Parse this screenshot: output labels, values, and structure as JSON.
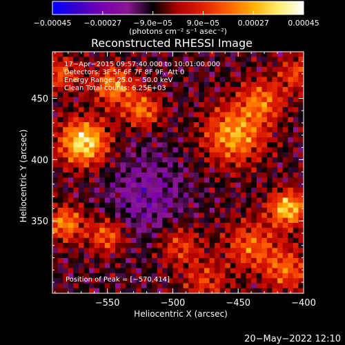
{
  "chart_data": {
    "type": "heatmap",
    "title": "Reconstructed RHESSI Image",
    "xlabel": "Heliocentric X (arcsec)",
    "ylabel": "Heliocentric Y (arcsec)",
    "xlim": [
      -592,
      -400
    ],
    "ylim": [
      291,
      488
    ],
    "x_ticks": [
      {
        "value": -550,
        "label": "−550"
      },
      {
        "value": -500,
        "label": "−500"
      },
      {
        "value": -450,
        "label": "−450"
      },
      {
        "value": -400,
        "label": "−400"
      }
    ],
    "y_ticks": [
      {
        "value": 450,
        "label": "450"
      },
      {
        "value": 400,
        "label": "400"
      },
      {
        "value": 350,
        "label": "350"
      }
    ],
    "colorbar": {
      "range": [
        -0.00045,
        0.00045
      ],
      "ticks": [
        {
          "value": -0.00045,
          "label": "−0.00045"
        },
        {
          "value": -0.00027,
          "label": "−0.00027"
        },
        {
          "value": -9e-05,
          "label": "−9.0e−05"
        },
        {
          "value": 9e-05,
          "label": "9.0e−05"
        },
        {
          "value": 0.00027,
          "label": "0.00027"
        },
        {
          "value": 0.00045,
          "label": "0.00045"
        }
      ],
      "unit_label": "(photons cm⁻² s⁻¹ asec⁻²)",
      "colormap": [
        "#0000ff",
        "#3a00c8",
        "#7a00b0",
        "#8a1890",
        "#000000",
        "#b00000",
        "#e02000",
        "#ff6000",
        "#ffb000",
        "#ffee70",
        "#ffffff"
      ]
    },
    "annotations": [
      "17−Apr−2015 09:57:40.000 to 10:01:00.000",
      "Detectors: 3F 5F 6F 7F 8F 9F, Att 0",
      "Energy Range: 25.0 − 50.0 keV",
      "Clean    Total counts: 6.25E+03"
    ],
    "peak_label": "Position of Peak = [−570,414]",
    "peak_position": [
      -570,
      414
    ],
    "sources": [
      {
        "x": -568,
        "y": 414,
        "amp": 0.00045,
        "r": 13
      },
      {
        "x": -545,
        "y": 460,
        "amp": 0.0003,
        "r": 11
      },
      {
        "x": -523,
        "y": 440,
        "amp": 0.00027,
        "r": 10
      },
      {
        "x": -453,
        "y": 420,
        "amp": 0.00034,
        "r": 16
      },
      {
        "x": -432,
        "y": 448,
        "amp": 0.00025,
        "r": 12
      },
      {
        "x": -412,
        "y": 360,
        "amp": 0.0004,
        "r": 10
      },
      {
        "x": -440,
        "y": 330,
        "amp": 0.00024,
        "r": 14
      },
      {
        "x": -413,
        "y": 310,
        "amp": 0.00024,
        "r": 12
      },
      {
        "x": -582,
        "y": 348,
        "amp": 0.0003,
        "r": 10
      },
      {
        "x": -550,
        "y": 338,
        "amp": 0.00026,
        "r": 10
      },
      {
        "x": -495,
        "y": 330,
        "amp": 0.0002,
        "r": 12
      },
      {
        "x": -475,
        "y": 300,
        "amp": 0.00018,
        "r": 12
      },
      {
        "x": -585,
        "y": 470,
        "amp": 0.00022,
        "r": 10
      },
      {
        "x": -405,
        "y": 470,
        "amp": 0.0002,
        "r": 10
      }
    ]
  },
  "footer": {
    "date": "20−May−2022 12:10"
  }
}
